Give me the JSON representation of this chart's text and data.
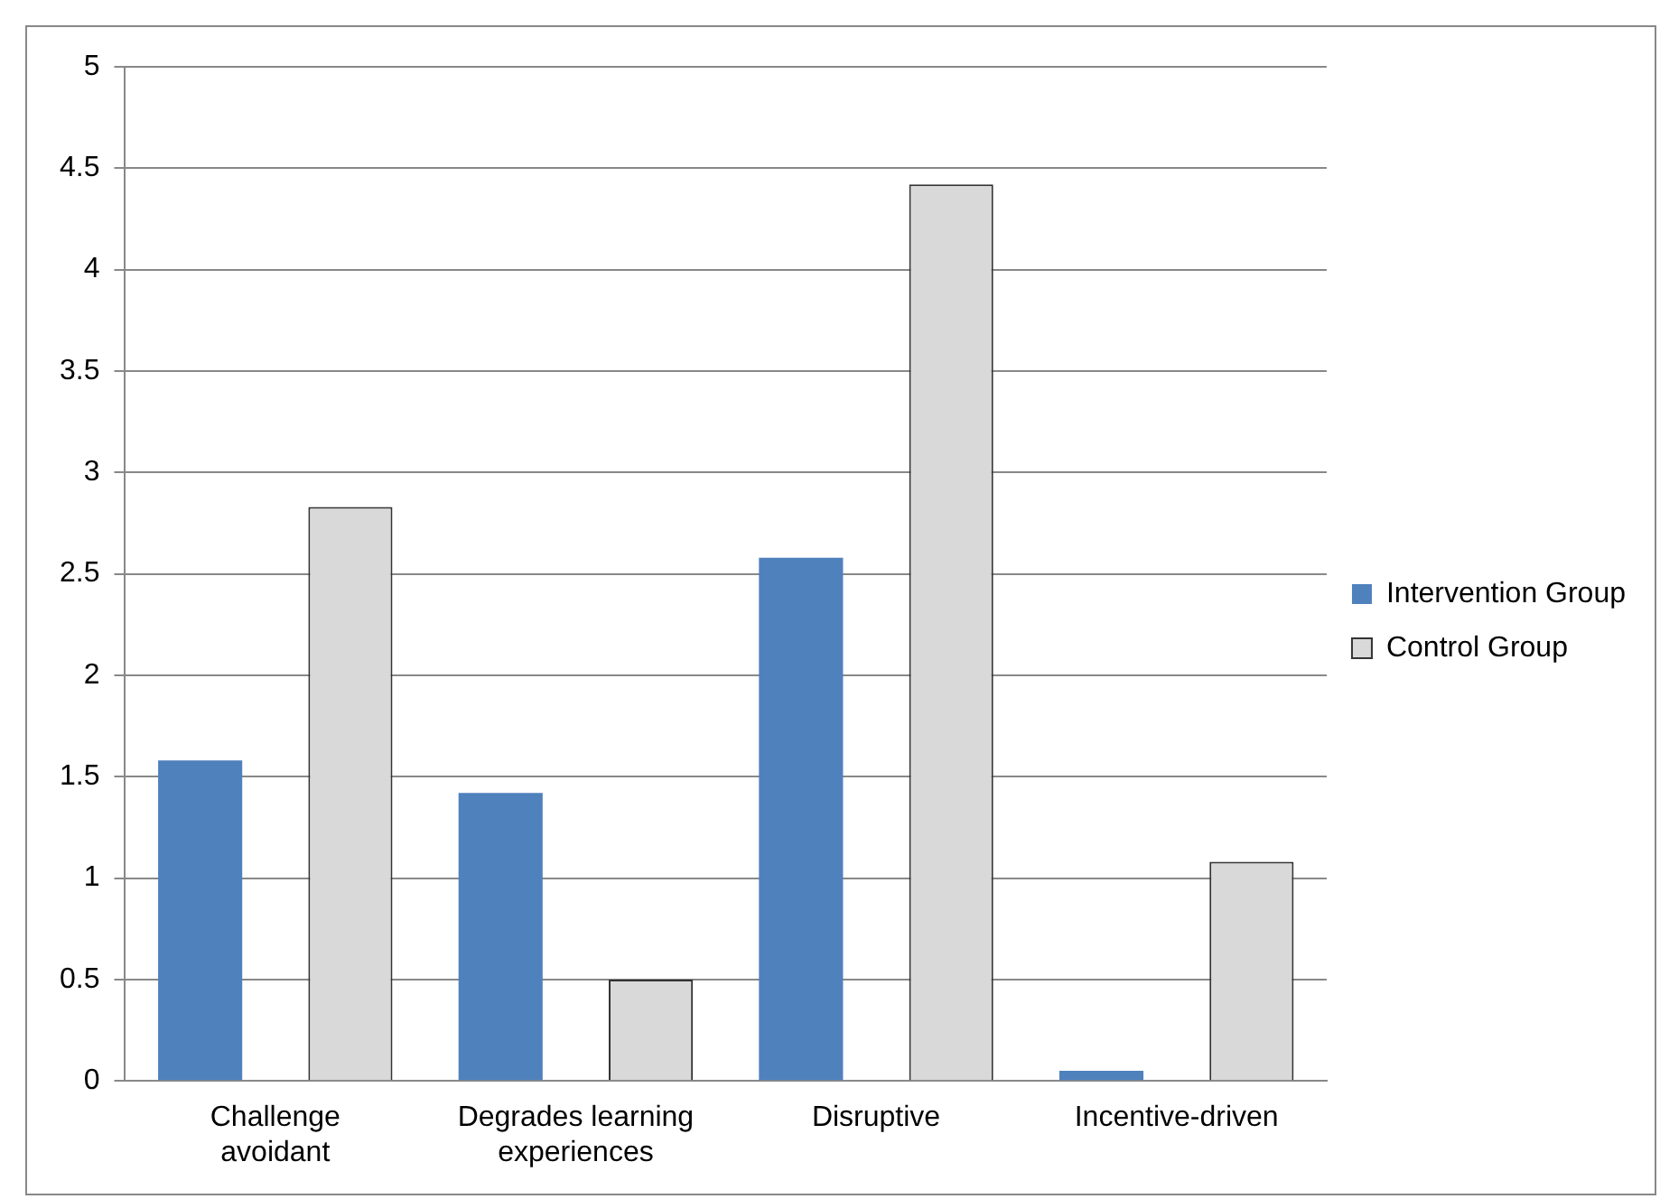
{
  "chart_data": {
    "type": "bar",
    "categories": [
      "Challenge avoidant",
      "Degrades learning experiences",
      "Disruptive",
      "Incentive-driven"
    ],
    "series": [
      {
        "name": "Intervention Group",
        "color": "#4f81bd",
        "values": [
          1.58,
          1.42,
          2.58,
          0.05
        ]
      },
      {
        "name": "Control Group",
        "color": "#d9d9d9",
        "values": [
          2.83,
          0.5,
          4.42,
          1.08
        ]
      }
    ],
    "ylim": [
      0,
      5
    ],
    "yticks": [
      0,
      0.5,
      1,
      1.5,
      2,
      2.5,
      3,
      3.5,
      4,
      4.5,
      5
    ],
    "grid": "y",
    "legend": "right"
  }
}
